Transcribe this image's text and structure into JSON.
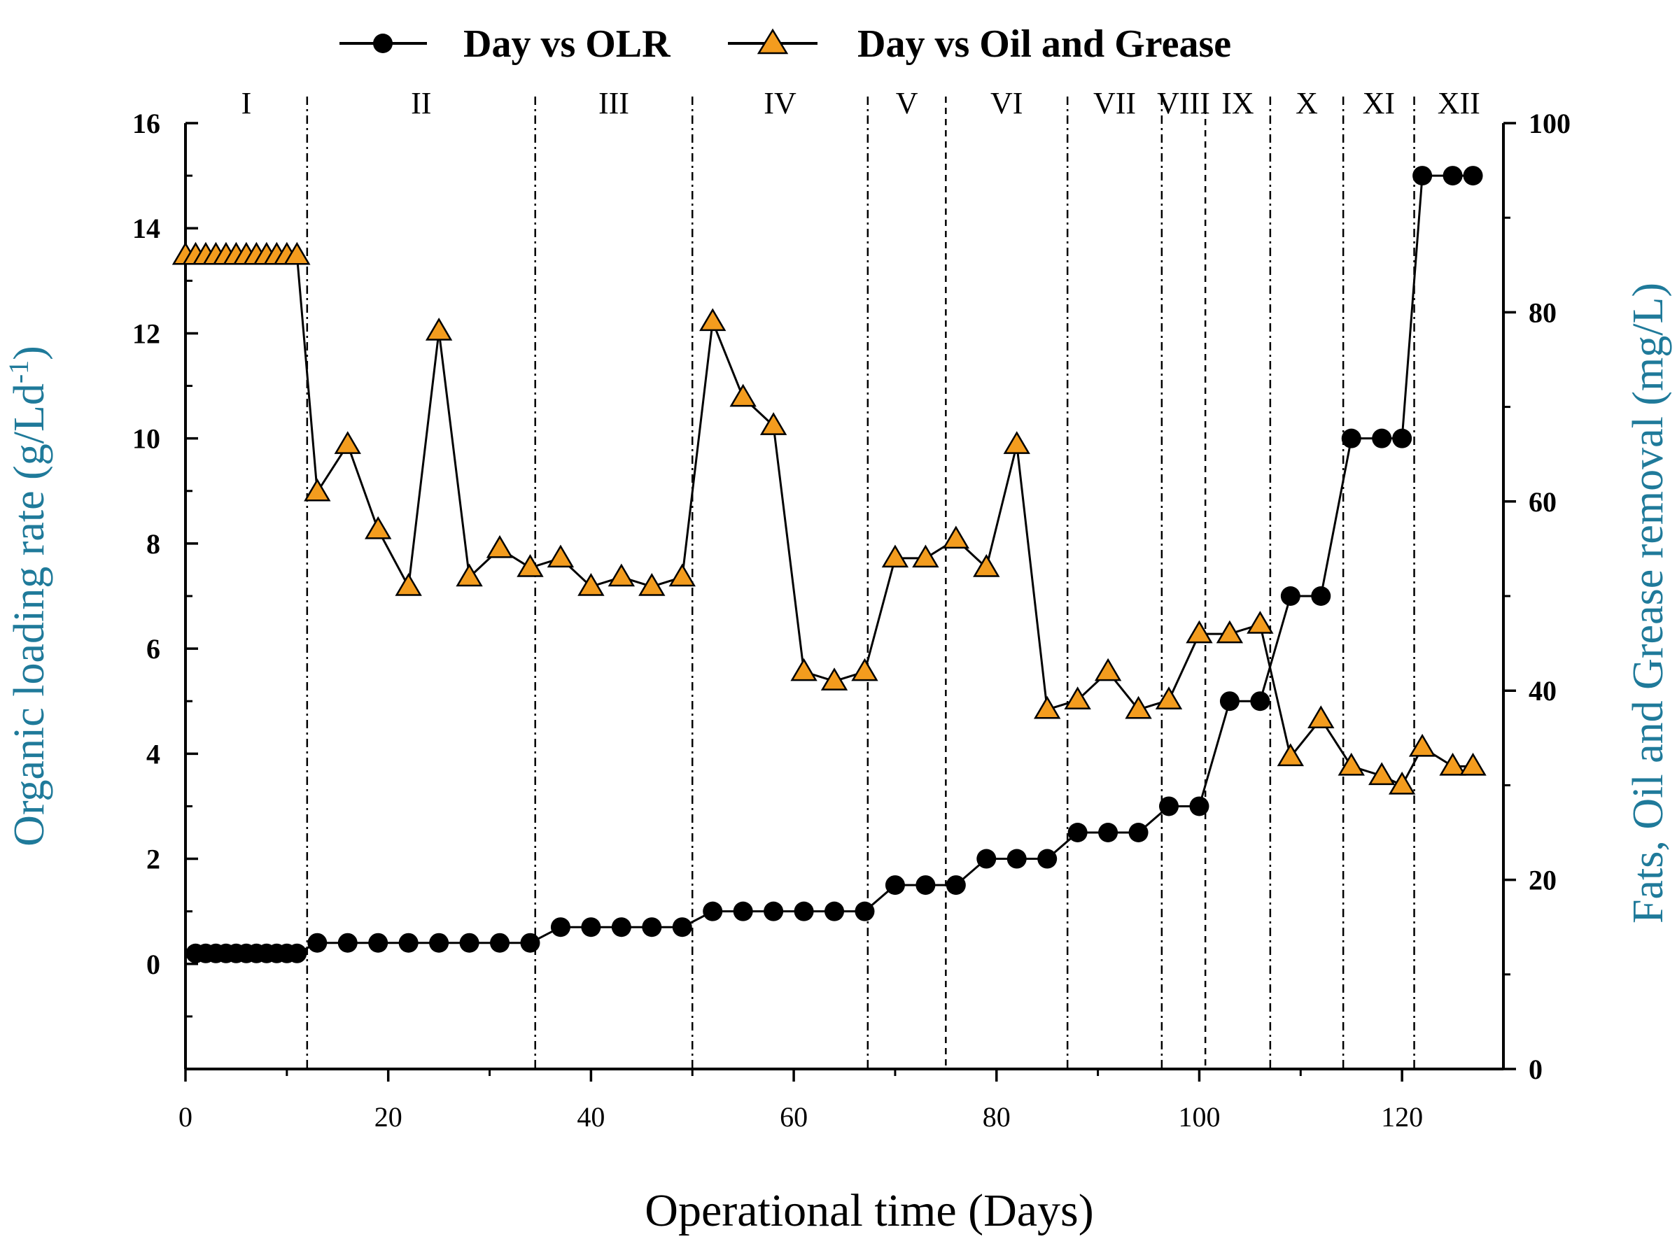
{
  "chart_data": {
    "type": "line",
    "title": "",
    "xlabel": "Operational time (Days)",
    "ylabel": "Organic loading rate (g/Ld-1)",
    "ylabel_main": "Organic loading rate (g/Ld",
    "ylabel_sup": "-1",
    "ylabel_close": ")",
    "y2label": "Fats, Oil and Grease removal (mg/L)",
    "xlim": [
      0,
      130
    ],
    "ylim": [
      -2,
      16
    ],
    "y2lim": [
      0,
      100
    ],
    "xticks": [
      0,
      20,
      40,
      60,
      80,
      100,
      120
    ],
    "yticks": [
      0,
      2,
      4,
      6,
      8,
      10,
      12,
      14,
      16
    ],
    "y2ticks": [
      0,
      20,
      40,
      60,
      80,
      100
    ],
    "grid": false,
    "legend_position": "top",
    "axis_title_color": "#1f7a9a",
    "phases": [
      {
        "label": "I",
        "start": 0,
        "end": 12
      },
      {
        "label": "II",
        "start": 12,
        "end": 34.5
      },
      {
        "label": "III",
        "start": 34.5,
        "end": 50
      },
      {
        "label": "IV",
        "start": 50,
        "end": 67.3
      },
      {
        "label": "V",
        "start": 67.3,
        "end": 75
      },
      {
        "label": "VI",
        "start": 75,
        "end": 87
      },
      {
        "label": "VII",
        "start": 87,
        "end": 96.3
      },
      {
        "label": "VIII",
        "start": 96.3,
        "end": 100.6
      },
      {
        "label": "IX",
        "start": 100.6,
        "end": 107
      },
      {
        "label": "X",
        "start": 107,
        "end": 114.2
      },
      {
        "label": "XI",
        "start": 114.2,
        "end": 121.2
      },
      {
        "label": "XII",
        "start": 121.2,
        "end": 130
      }
    ],
    "phase_boundaries": [
      {
        "x": 12,
        "style": "dashdot"
      },
      {
        "x": 34.5,
        "style": "dashdot"
      },
      {
        "x": 50,
        "style": "dashdot"
      },
      {
        "x": 67.3,
        "style": "dashdot"
      },
      {
        "x": 75,
        "style": "dashed"
      },
      {
        "x": 87,
        "style": "dashdot"
      },
      {
        "x": 96.3,
        "style": "dashdot"
      },
      {
        "x": 100.6,
        "style": "dashed"
      },
      {
        "x": 107,
        "style": "dashdot"
      },
      {
        "x": 114.2,
        "style": "dashdot"
      },
      {
        "x": 121.2,
        "style": "dashdot"
      }
    ],
    "series": [
      {
        "name": "Day vs OLR",
        "axis": "left",
        "marker": "circle",
        "color": "#000000",
        "x": [
          1,
          2,
          3,
          4,
          5,
          6,
          7,
          8,
          9,
          10,
          11,
          13,
          16,
          19,
          22,
          25,
          28,
          31,
          34,
          37,
          40,
          43,
          46,
          49,
          52,
          55,
          58,
          61,
          64,
          67,
          70,
          73,
          76,
          79,
          82,
          85,
          88,
          91,
          94,
          97,
          100,
          103,
          106,
          109,
          112,
          115,
          118,
          120,
          122,
          125,
          127
        ],
        "values": [
          0.2,
          0.2,
          0.2,
          0.2,
          0.2,
          0.2,
          0.2,
          0.2,
          0.2,
          0.2,
          0.2,
          0.4,
          0.4,
          0.4,
          0.4,
          0.4,
          0.4,
          0.4,
          0.4,
          0.7,
          0.7,
          0.7,
          0.7,
          0.7,
          1.0,
          1.0,
          1.0,
          1.0,
          1.0,
          1.0,
          1.5,
          1.5,
          1.5,
          2.0,
          2.0,
          2.0,
          2.5,
          2.5,
          2.5,
          3.0,
          3.0,
          5.0,
          5.0,
          7.0,
          7.0,
          10.0,
          10.0,
          10.0,
          15.0,
          15.0,
          15.0
        ]
      },
      {
        "name": "Day vs Oil and Grease",
        "axis": "right",
        "marker": "triangle",
        "color": "#f39c1e",
        "x": [
          0,
          1,
          2,
          3,
          4,
          5,
          6,
          7,
          8,
          9,
          10,
          11,
          13,
          16,
          19,
          22,
          25,
          28,
          31,
          34,
          37,
          40,
          43,
          46,
          49,
          52,
          55,
          58,
          61,
          64,
          67,
          70,
          73,
          76,
          79,
          82,
          85,
          88,
          91,
          94,
          97,
          100,
          103,
          106,
          109,
          112,
          115,
          118,
          120,
          122,
          125,
          127
        ],
        "values": [
          86,
          86,
          86,
          86,
          86,
          86,
          86,
          86,
          86,
          86,
          86,
          86,
          61,
          66,
          57,
          51,
          78,
          52,
          55,
          53,
          54,
          51,
          52,
          51,
          52,
          79,
          71,
          68,
          42,
          41,
          42,
          54,
          54,
          56,
          53,
          66,
          38,
          39,
          42,
          38,
          39,
          46,
          46,
          47,
          33,
          37,
          32,
          31,
          30,
          34,
          32,
          32
        ]
      }
    ]
  }
}
